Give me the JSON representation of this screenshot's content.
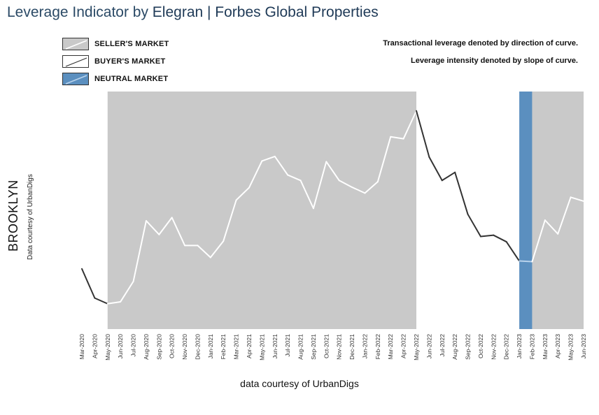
{
  "title": {
    "prefix": "Leverage Indicator by ",
    "brand": "Elegran | Forbes Global Properties"
  },
  "legend": [
    {
      "label": "SELLER'S MARKET",
      "fill": "#c9c9c9",
      "line": "#ffffff"
    },
    {
      "label": "BUYER'S MARKET",
      "fill": "#ffffff",
      "line": "#333333"
    },
    {
      "label": "NEUTRAL MARKET",
      "fill": "#5b8fbf",
      "line": "#b9d3ec"
    }
  ],
  "notes": [
    "Transactional leverage denoted by direction of curve.",
    "Leverage intensity denoted by slope of curve."
  ],
  "yaxis_label": "BROOKLYN",
  "yaxis_sublabel": "Data courtesy of UrbanDigs",
  "xaxis_label": "data courtesy of UrbanDigs",
  "chart_data": {
    "type": "line",
    "x": [
      "Mar-2020",
      "Apr-2020",
      "May-2020",
      "Jun-2020",
      "Jul-2020",
      "Aug-2020",
      "Sep-2020",
      "Oct-2020",
      "Nov-2020",
      "Dec-2020",
      "Jan-2021",
      "Feb-2021",
      "Mar-2021",
      "Apr-2021",
      "May-2021",
      "Jun-2021",
      "Jul-2021",
      "Aug-2021",
      "Sep-2021",
      "Oct-2021",
      "Nov-2021",
      "Dec-2021",
      "Jan-2022",
      "Feb-2022",
      "Mar-2022",
      "Apr-2022",
      "May-2022",
      "Jun-2022",
      "Jul-2022",
      "Aug-2022",
      "Sep-2022",
      "Oct-2022",
      "Nov-2022",
      "Dec-2022",
      "Jan-2023",
      "Feb-2023",
      "Mar-2023",
      "Apr-2023",
      "May-2023",
      "Jun-2023"
    ],
    "values": [
      27.6,
      14.2,
      11.6,
      12.5,
      21.8,
      49.6,
      43.3,
      51.1,
      38.3,
      38.3,
      32.8,
      40.3,
      59.1,
      64.8,
      77.0,
      79.1,
      70.6,
      68.1,
      55.3,
      76.7,
      68.1,
      65.0,
      62.3,
      67.5,
      88.1,
      87.2,
      100.0,
      78.8,
      68.1,
      71.8,
      52.6,
      42.4,
      43.0,
      40.0,
      31.2,
      30.9,
      49.9,
      43.6,
      60.4,
      58.6
    ],
    "ylim": [
      0,
      105
    ],
    "regions": [
      {
        "market": "seller",
        "start": "May-2020",
        "end": "May-2022"
      },
      {
        "market": "neutral",
        "start": "Jan-2023",
        "end": "Feb-2023"
      },
      {
        "market": "seller",
        "start": "Feb-2023",
        "end": "Jun-2023"
      }
    ],
    "colors": {
      "seller_fill": "#c9c9c9",
      "neutral_fill": "#5b8fbf",
      "seller_line": "#ffffff",
      "buyer_line": "#333333",
      "neutral_line": "#b9d3ec"
    },
    "grid": false
  }
}
